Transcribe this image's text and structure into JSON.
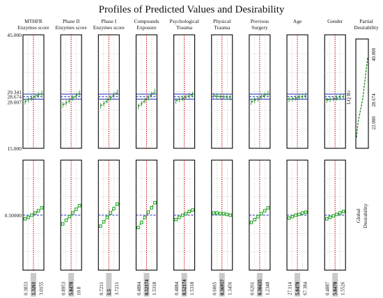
{
  "chart_data": {
    "type": "line",
    "title": "Profiles of Predicted Values and Desirability",
    "factors": [
      {
        "label": [
          "MTHFR",
          "Enzymes score"
        ],
        "ticks": [
          "0.3833",
          "1.3261",
          "3.0155"
        ],
        "current": "1.3261",
        "pred": [
          27.3,
          27.8,
          28.3,
          28.7,
          29.1,
          29.5
        ],
        "desir": [
          0.45,
          0.47,
          0.5,
          0.53,
          0.56,
          0.6
        ]
      },
      {
        "label": [
          "Phase II",
          "Enzymes score"
        ],
        "ticks": [
          "0.8953",
          "5.8478",
          "10.8"
        ],
        "current": "5.8478",
        "pred": [
          26.5,
          27.0,
          27.6,
          28.3,
          28.9,
          29.6
        ],
        "desir": [
          0.38,
          0.43,
          0.48,
          0.53,
          0.58,
          0.63
        ]
      },
      {
        "label": [
          "Phase I",
          "Enzymes score"
        ],
        "ticks": [
          "0.7211",
          "1.5",
          "3.7211"
        ],
        "current": "1.5",
        "pred": [
          26.2,
          26.8,
          27.6,
          28.3,
          29.1,
          29.8
        ],
        "desir": [
          0.35,
          0.41,
          0.47,
          0.53,
          0.59,
          0.65
        ]
      },
      {
        "label": [
          "Compounds",
          "Exposure"
        ],
        "ticks": [
          "0.4884",
          "0.52174",
          "1.5318"
        ],
        "current": "0.52174",
        "pred": [
          26.1,
          26.8,
          27.6,
          28.4,
          29.2,
          30.0
        ],
        "desir": [
          0.33,
          0.4,
          0.47,
          0.54,
          0.6,
          0.67
        ]
      },
      {
        "label": [
          "Psychological",
          "Trauma"
        ],
        "ticks": [
          "0.4884",
          "0.52174",
          "1.5318"
        ],
        "current": "0.52174",
        "pred": [
          27.5,
          27.9,
          28.2,
          28.6,
          28.9,
          29.2
        ],
        "desir": [
          0.44,
          0.47,
          0.5,
          0.52,
          0.55,
          0.57
        ]
      },
      {
        "label": [
          "Physical",
          "Trauma"
        ],
        "ticks": [
          "0.6065",
          "0.36957",
          "1.3456"
        ],
        "current": "0.36957",
        "pred": [
          28.9,
          28.8,
          28.7,
          28.6,
          28.5,
          28.4
        ],
        "desir": [
          0.53,
          0.53,
          0.52,
          0.52,
          0.51,
          0.5
        ]
      },
      {
        "label": [
          "Previous",
          "Surgery"
        ],
        "ticks": [
          "0.6261",
          "0.30435",
          "1.2348"
        ],
        "current": "0.30435",
        "pred": [
          27.2,
          27.7,
          28.1,
          28.6,
          29.0,
          29.5
        ],
        "desir": [
          0.4,
          0.44,
          0.48,
          0.52,
          0.56,
          0.6
        ]
      },
      {
        "label": [
          "Age",
          ""
        ],
        "ticks": [
          "27.114",
          "5.8478",
          "67.384"
        ],
        "current": "5.8478",
        "pred": [
          27.9,
          28.1,
          28.3,
          28.5,
          28.7,
          28.9
        ],
        "desir": [
          0.46,
          0.48,
          0.5,
          0.51,
          0.53,
          0.54
        ]
      },
      {
        "label": [
          "Gender",
          ""
        ],
        "ticks": [
          "0.4887",
          "5.8478",
          "1.5526"
        ],
        "current": "5.8478",
        "pred": [
          27.7,
          27.9,
          28.1,
          28.3,
          28.5,
          28.7
        ],
        "desir": [
          0.45,
          0.47,
          0.49,
          0.51,
          0.53,
          0.55
        ]
      }
    ],
    "top_panel": {
      "ylim": [
        15.0,
        45.0
      ],
      "ytick_labels": [
        "45.000",
        "29.341",
        "28.674",
        "28.007",
        "15.000"
      ],
      "ytick_values": [
        45.0,
        29.341,
        28.674,
        28.007,
        15.0
      ],
      "current_value": 28.674,
      "interval": [
        28.007,
        29.341
      ]
    },
    "bottom_panel": {
      "ylim": [
        -0.25,
        1.25
      ],
      "ytick_label": "0.50000",
      "ytick_value": 0.5
    },
    "partial_desirability": {
      "label": [
        "Partial",
        "Desirability"
      ],
      "response_label": "LQ Rv",
      "values": [
        "40.000",
        "28.674",
        "22.000"
      ],
      "numeric": [
        40.0,
        28.674,
        22.0
      ]
    },
    "global_desirability_label": [
      "Global",
      "Desirability"
    ],
    "colors": {
      "fit": "#1f8a1f",
      "points": "#17a017",
      "current_line": "#cc0000",
      "interval": "#1a2fb8",
      "reference": "#1a2fb8",
      "grid": "#c0c0c0",
      "axis": "#000000",
      "highlight_tick": "#c9c9c9"
    }
  }
}
